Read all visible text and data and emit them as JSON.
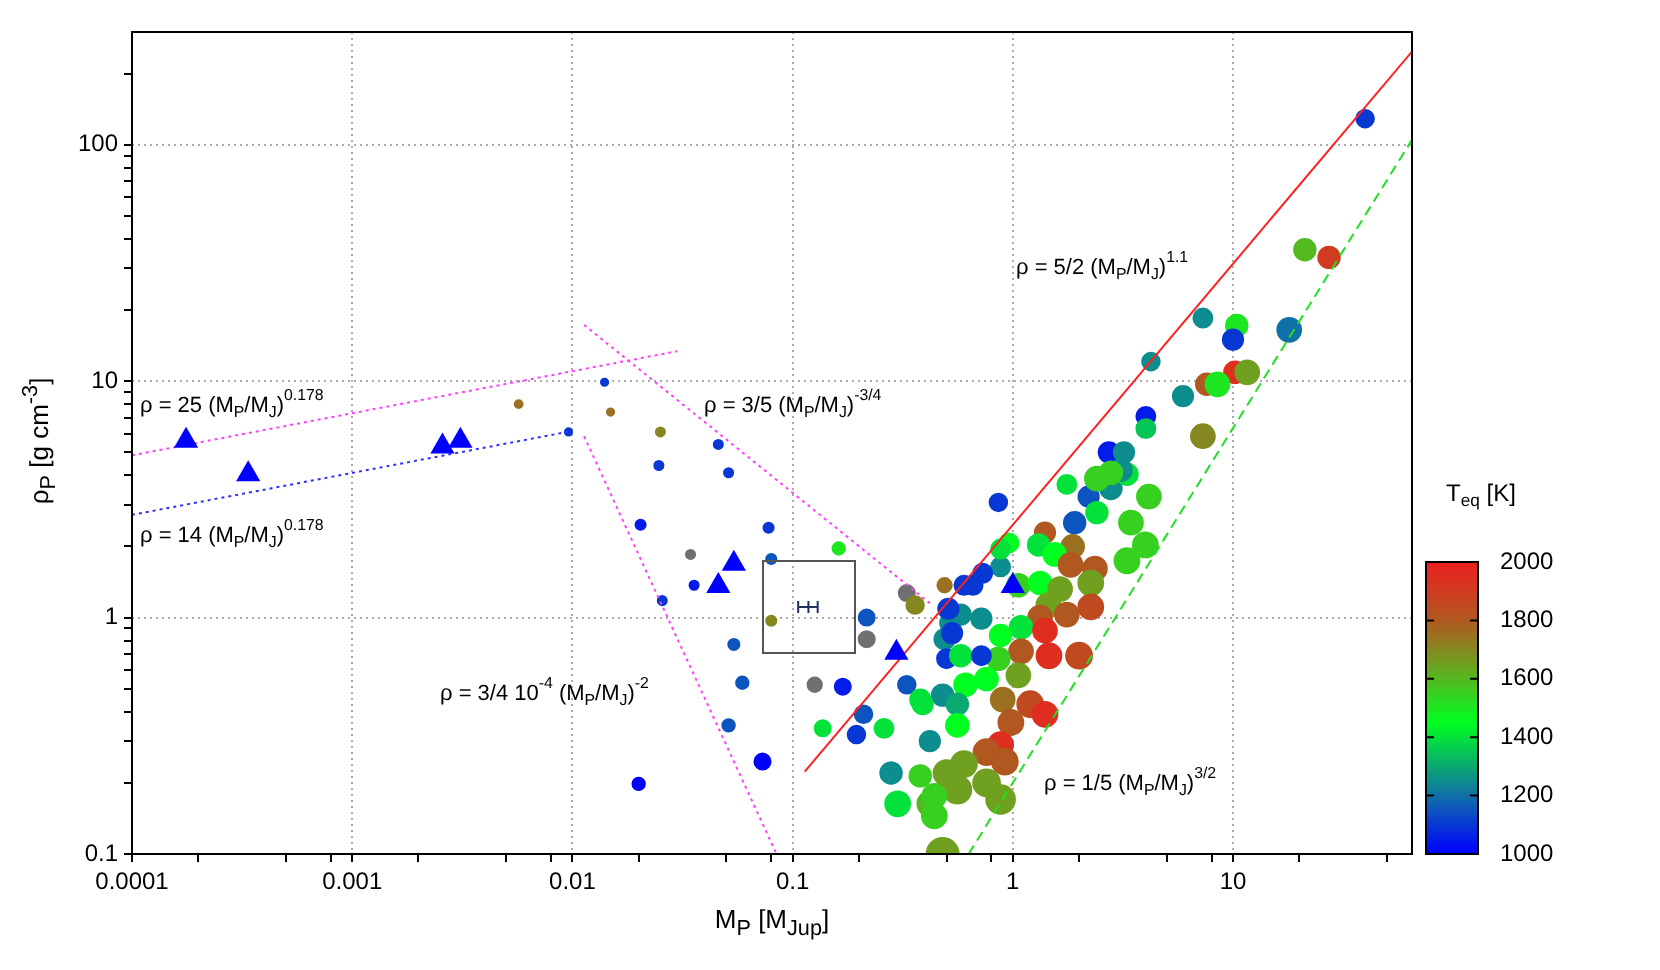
{
  "chart_data": {
    "type": "scatter",
    "xlabel": "M$_{P}$ [M$_{Jup}$]",
    "ylabel": "ρ$_{P}$ [g cm$^{-3}$]",
    "clabel": "T$_{eq}$ [K]",
    "log": "xy",
    "grid": true,
    "xlim": [
      0.0001,
      65
    ],
    "ylim": [
      0.1,
      300
    ],
    "clim": [
      1000,
      2000
    ],
    "cticks": [
      1000,
      1200,
      1400,
      1600,
      1800,
      2000
    ],
    "xticks": [
      0.0001,
      {
        "value": 0.0002,
        "label": null
      },
      {
        "value": 0.0005,
        "label": null
      },
      {
        "value": 0.0008,
        "label": null
      },
      0.001,
      {
        "value": 0.002,
        "label": null
      },
      {
        "value": 0.005,
        "label": null
      },
      {
        "value": 0.008,
        "label": null
      },
      0.01,
      {
        "value": 0.02,
        "label": null
      },
      {
        "value": 0.05,
        "label": null
      },
      {
        "value": 0.08,
        "label": null
      },
      0.1,
      {
        "value": 0.2,
        "label": null
      },
      {
        "value": 0.5,
        "label": null
      },
      {
        "value": 0.8,
        "label": null
      },
      1,
      {
        "value": 2,
        "label": null
      },
      {
        "value": 5,
        "label": null
      },
      {
        "value": 8,
        "label": null
      },
      10,
      {
        "value": 20,
        "label": null
      },
      {
        "value": 50,
        "label": null
      }
    ],
    "yticks": [
      0.1,
      {
        "value": 0.2,
        "label": null
      },
      {
        "value": 0.3,
        "label": null
      },
      {
        "value": 0.4,
        "label": null
      },
      {
        "value": 0.5,
        "label": null
      },
      {
        "value": 0.6,
        "label": null
      },
      {
        "value": 0.7,
        "label": null
      },
      {
        "value": 0.8,
        "label": null
      },
      {
        "value": 0.9,
        "label": null
      },
      1,
      {
        "value": 2,
        "label": null
      },
      {
        "value": 3,
        "label": null
      },
      {
        "value": 4,
        "label": null
      },
      {
        "value": 5,
        "label": null
      },
      {
        "value": 6,
        "label": null
      },
      {
        "value": 7,
        "label": null
      },
      {
        "value": 8,
        "label": null
      },
      {
        "value": 9,
        "label": null
      },
      10,
      {
        "value": 20,
        "label": null
      },
      {
        "value": 30,
        "label": null
      },
      {
        "value": 40,
        "label": null
      },
      {
        "value": 50,
        "label": null
      },
      {
        "value": 60,
        "label": null
      },
      {
        "value": 70,
        "label": null
      },
      {
        "value": 80,
        "label": null
      },
      {
        "value": 90,
        "label": null
      },
      100,
      {
        "value": 200,
        "label": null
      }
    ],
    "series": [
      {
        "marker": "circle",
        "x": [
          0.014,
          0.0149,
          0.0096,
          0.0251,
          0.046,
          0.0247,
          0.0512,
          0.0204,
          0.0778,
          0.0344,
          0.162,
          0.08,
          0.0357,
          0.0256,
          0.08,
          0.0541,
          0.0591,
          0.0512,
          0.073,
          0.02,
          0.0057,
          0.126,
          0.169,
          0.217,
          0.217,
          0.33,
          0.36,
          0.86,
          0.33,
          0.137,
          0.195,
          0.21,
          0.26,
          0.28,
          0.3,
          0.42,
          0.48,
          1.76,
          2.21,
          1.91,
          2.41,
          3.44,
          4.15,
          2.79,
          1.4,
          0.96,
          1.31,
          1.87,
          1.55,
          3.3,
          4.0,
          2.36,
          1.83,
          2.26,
          2.26,
          0.88,
          0.73,
          0.66,
          1.06,
          1.33,
          1.64,
          1.45,
          1.76,
          1.33,
          1.09,
          1.4,
          1.46,
          2.0,
          1.09,
          0.88,
          0.86,
          1.06,
          0.72,
          0.58,
          0.52,
          0.49,
          0.5,
          0.58,
          0.72,
          0.76,
          0.61,
          0.48,
          0.39,
          0.56,
          0.9,
          1.2,
          1.4,
          0.98,
          0.56,
          0.88,
          0.76,
          0.92,
          0.6,
          0.42,
          0.38,
          0.5,
          0.76,
          0.56,
          0.88,
          0.44,
          0.44,
          0.38,
          0.6,
          0.49,
          0.51,
          0.53,
          0.88,
          3.3,
          39.8,
          21.2,
          27.3,
          7.3,
          10.4,
          10.0,
          18,
          4.24,
          10.2,
          11.6,
          7.6,
          8.5,
          5.93,
          4.02,
          4.02,
          7.3,
          2.73,
          3.2,
          3.1,
          2.41,
          2.79
        ],
        "values": [
          9.9,
          7.4,
          6.1,
          6.1,
          5.4,
          4.4,
          4.1,
          2.47,
          2.4,
          1.85,
          1.96,
          1.77,
          1.37,
          1.18,
          0.97,
          0.77,
          0.53,
          0.35,
          0.246,
          0.198,
          8.0,
          0.52,
          0.51,
          1.0,
          0.81,
          1.27,
          1.13,
          3.07,
          0.52,
          0.34,
          0.32,
          0.39,
          0.34,
          0.22,
          0.163,
          0.163,
          0.1,
          3.66,
          3.25,
          2.52,
          2.78,
          2.52,
          3.25,
          3.52,
          2.29,
          2.07,
          2.03,
          2.0,
          1.85,
          1.74,
          2.03,
          1.61,
          1.67,
          1.4,
          1.11,
          1.64,
          1.54,
          1.37,
          1.37,
          1.4,
          1.32,
          1.13,
          1.03,
          1.0,
          0.91,
          0.88,
          0.69,
          0.69,
          0.72,
          0.84,
          0.67,
          0.57,
          0.99,
          1.03,
          0.95,
          0.81,
          0.67,
          0.69,
          0.69,
          0.55,
          0.52,
          0.47,
          0.43,
          0.43,
          0.45,
          0.43,
          0.39,
          0.36,
          0.35,
          0.29,
          0.27,
          0.246,
          0.24,
          0.3,
          0.214,
          0.22,
          0.2,
          0.187,
          0.17,
          0.176,
          0.145,
          0.45,
          1.37,
          1.37,
          1.09,
          0.86,
          1.95,
          4.04,
          129,
          36,
          33.4,
          18.5,
          17.2,
          15.0,
          16.5,
          12.1,
          10.9,
          10.9,
          9.7,
          9.7,
          8.65,
          7.1,
          6.3,
          5.85,
          5.0,
          5.0,
          4.2,
          3.87,
          4.1
        ],
        "sizes": [
          0.05,
          0.05,
          0.05,
          0.08,
          0.08,
          0.08,
          0.08,
          0.1,
          0.1,
          0.08,
          0.15,
          0.1,
          0.08,
          0.08,
          0.1,
          0.12,
          0.15,
          0.15,
          0.25,
          0.15,
          0.06,
          0.2,
          0.25,
          0.25,
          0.25,
          0.25,
          0.3,
          0.3,
          0.3,
          0.25,
          0.3,
          0.3,
          0.35,
          0.45,
          0.6,
          0.6,
          1.0,
          0.35,
          0.4,
          0.45,
          0.45,
          0.55,
          0.55,
          0.45,
          0.4,
          0.35,
          0.45,
          0.5,
          0.5,
          0.6,
          0.6,
          0.55,
          0.55,
          0.6,
          0.6,
          0.35,
          0.35,
          0.35,
          0.5,
          0.5,
          0.55,
          0.55,
          0.55,
          0.55,
          0.5,
          0.55,
          0.6,
          0.65,
          0.55,
          0.45,
          0.5,
          0.55,
          0.4,
          0.4,
          0.4,
          0.4,
          0.35,
          0.45,
          0.35,
          0.5,
          0.5,
          0.45,
          0.4,
          0.45,
          0.55,
          0.65,
          0.6,
          0.6,
          0.5,
          0.6,
          0.65,
          0.65,
          0.65,
          0.4,
          0.45,
          0.65,
          0.7,
          0.75,
          0.8,
          0.55,
          0.6,
          0.4,
          0.35,
          0.2,
          0.4,
          0.4,
          0.35,
          0.45,
          0.3,
          0.45,
          0.45,
          0.35,
          0.45,
          0.4,
          0.55,
          0.3,
          0.45,
          0.55,
          0.45,
          0.55,
          0.4,
          0.35,
          0.35,
          0.55,
          0.4,
          0.4,
          0.45,
          0.55,
          0.5
        ],
        "colors": [
          "#0838d4",
          "#9b7020",
          "#0838d4",
          "#858820",
          "#0838d4",
          "#0838d4",
          "#0838d4",
          "#041ce9",
          "#0838d4",
          "#707070",
          "#1ce720",
          "#0c54be",
          "#041ce9",
          "#0838d4",
          "#858820",
          "#0c54be",
          "#0c54be",
          "#0c54be",
          "#0000ff",
          "#0000ff",
          "#9b7020",
          "#707070",
          "#041ce9",
          "#0c54be",
          "#707070",
          "#707070",
          "#858820",
          "#0838d4",
          "#0c54be",
          "#03e23b",
          "#0838d4",
          "#0c54be",
          "#03e23b",
          "#0d8d8d",
          "#03e23b",
          "#54b820",
          "#70a020",
          "#03e23b",
          "#0c54be",
          "#0c54be",
          "#03e23b",
          "#38d020",
          "#38d020",
          "#0d8d8d",
          "#b05820",
          "#00ff20",
          "#03e23b",
          "#9b7020",
          "#00ff20",
          "#38d020",
          "#38d020",
          "#b05820",
          "#b05820",
          "#70a020",
          "#c04a20",
          "#0d8d8d",
          "#0838d4",
          "#0838d4",
          "#38d020",
          "#00ff20",
          "#70a020",
          "#70a020",
          "#b05820",
          "#b05820",
          "#03e23b",
          "#df2e20",
          "#df2e20",
          "#c04a20",
          "#b05820",
          "#00ff20",
          "#38d020",
          "#70a020",
          "#0d8d8d",
          "#0d8d8d",
          "#0d8d8d",
          "#0d8d8d",
          "#0838d4",
          "#03e23b",
          "#0838d4",
          "#00ff20",
          "#00ff20",
          "#0d8d8d",
          "#03e23b",
          "#0aa972",
          "#9b7020",
          "#c04a20",
          "#df2e20",
          "#b05820",
          "#00ff20",
          "#df2e20",
          "#b05820",
          "#b05820",
          "#70a020",
          "#0d8d8d",
          "#38d020",
          "#70a020",
          "#70a020",
          "#70a020",
          "#70a020",
          "#38d020",
          "#38d020",
          "#03e23b",
          "#0838d4",
          "#9b7020",
          "#0838d4",
          "#0838d4",
          "#03e23b",
          "#03e23b",
          "#0838d4",
          "#54b820",
          "#cf3c20",
          "#0d8d8d",
          "#1ce720",
          "#0838d4",
          "#1070a8",
          "#0d8d8d",
          "#df2e20",
          "#70a020",
          "#b05820",
          "#1ce720",
          "#0d8d8d",
          "#041ce9",
          "#06c656",
          "#858820",
          "#041ce9",
          "#0d8d8d",
          "#0d8d8d",
          "#38d020",
          "#38d020"
        ],
        "cvalues": [
          1100,
          1750,
          1100,
          1700,
          1100,
          1100,
          1100,
          1050,
          1100,
          null,
          1500,
          1150,
          1050,
          1100,
          1700,
          1150,
          1150,
          1150,
          1000,
          1000,
          1750,
          null,
          1050,
          1150,
          null,
          null,
          1700,
          1100,
          1150,
          1400,
          1100,
          1150,
          1400,
          1250,
          1400,
          1600,
          1650,
          1400,
          1150,
          1150,
          1400,
          1550,
          1550,
          1250,
          1800,
          1450,
          1400,
          1750,
          1450,
          1550,
          1550,
          1800,
          1800,
          1650,
          1850,
          1250,
          1100,
          1100,
          1550,
          1450,
          1650,
          1650,
          1800,
          1800,
          1400,
          1950,
          1950,
          1850,
          1800,
          1450,
          1550,
          1650,
          1250,
          1250,
          1250,
          1250,
          1100,
          1400,
          1100,
          1450,
          1450,
          1250,
          1400,
          1300,
          1750,
          1850,
          1950,
          1800,
          1450,
          1950,
          1800,
          1800,
          1650,
          1250,
          1550,
          1650,
          1650,
          1650,
          1650,
          1550,
          1550,
          1400,
          1100,
          1750,
          1100,
          1100,
          1400,
          1400,
          1100,
          1600,
          1900,
          1250,
          1500,
          1100,
          1200,
          1250,
          1950,
          1650,
          1800,
          1500,
          1250,
          1050,
          1350,
          1700,
          1050,
          1250,
          1250,
          1550,
          1550
        ]
      },
      {
        "type": "line",
        "color": "#ff40ff",
        "line_style": "dotted",
        "x": [
          0.0001,
          0.03
        ],
        "values": [
          4.86,
          13.4
        ]
      },
      {
        "type": "line",
        "color": "#3030ff",
        "line_style": "dotted",
        "x": [
          0.0001,
          0.01
        ],
        "values": [
          2.72,
          6.16
        ]
      },
      {
        "type": "line",
        "color": "#ff40ff",
        "line_style": "dotted",
        "x": [
          0.0113,
          0.42
        ],
        "values": [
          17.3,
          1.15
        ]
      },
      {
        "type": "line",
        "color": "#ff40ff",
        "line_style": "dotted",
        "x": [
          0.0113,
          0.0845
        ],
        "values": [
          5.85,
          0.1
        ]
      },
      {
        "type": "line",
        "color": "#ff2020",
        "line_style": "solid",
        "x": [
          0.1135,
          65
        ],
        "values": [
          0.223,
          248
        ]
      },
      {
        "type": "line",
        "color": "#20e020",
        "line_style": "dashed",
        "x": [
          0.63,
          65
        ],
        "values": [
          0.1,
          105
        ]
      },
      {
        "type": "scatter",
        "color": "#203060",
        "marker": "cross",
        "x": [
          0.118
        ],
        "values": [
          1.11
        ],
        "xerrors": [
          [
            0.106,
            0.13
          ]
        ]
      },
      {
        "type": "scatter",
        "color": "#0000ff",
        "marker": "triangle",
        "x": [
          0.000176,
          0.000337,
          0.00257,
          0.0031,
          0.0541,
          0.046,
          0.296,
          1.0
        ],
        "values": [
          5.6,
          4.04,
          5.3,
          5.6,
          1.69,
          1.36,
          0.71,
          1.36
        ]
      }
    ],
    "annotations": [
      "ρ = 25 (M$_{P}$/M$_{J}$)$^{0.178}$",
      "ρ = 14 (M$_{P}$/M$_{J}$)$^{0.178}$",
      "ρ = 3/5 (M$_{P}$/M$_{J}$)$^{-3/4}$",
      "ρ = 3/4 10$^{-4}$ (M$_{P}$/M$_{J}$)$^{-2}$",
      "ρ = 5/2 (M$_{P}$/M$_{J}$)$^{1.1}$",
      "ρ = 1/5 (M$_{P}$/M$_{J}$)$^{3/2}$"
    ]
  }
}
